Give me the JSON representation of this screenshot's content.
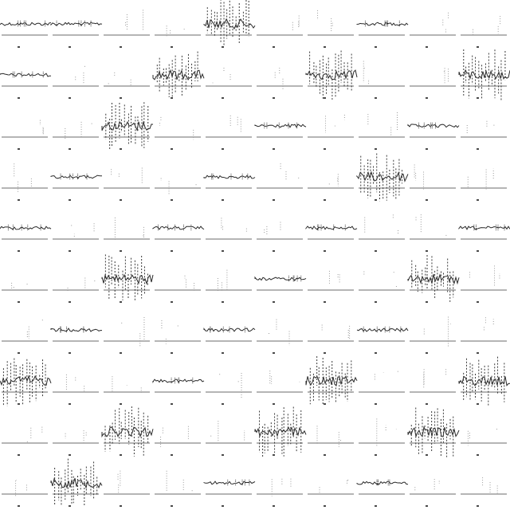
{
  "image": {
    "kind": "repeating seismogram-like texture",
    "columns": 10,
    "rows": 10,
    "background_color": "#ffffff",
    "ink_color": "#2a2a2a",
    "baseline_color": "#b5b5b5",
    "tiles": [
      {
        "row": 0,
        "col": 0,
        "variant": "quiet"
      },
      {
        "row": 0,
        "col": 1,
        "variant": "quiet"
      },
      {
        "row": 0,
        "col": 2,
        "variant": "empty"
      },
      {
        "row": 0,
        "col": 3,
        "variant": "empty"
      },
      {
        "row": 0,
        "col": 4,
        "variant": "burst"
      },
      {
        "row": 0,
        "col": 5,
        "variant": "empty"
      },
      {
        "row": 0,
        "col": 6,
        "variant": "empty"
      },
      {
        "row": 0,
        "col": 7,
        "variant": "quiet"
      },
      {
        "row": 0,
        "col": 8,
        "variant": "empty"
      },
      {
        "row": 0,
        "col": 9,
        "variant": "empty"
      },
      {
        "row": 1,
        "col": 0,
        "variant": "quiet"
      },
      {
        "row": 1,
        "col": 1,
        "variant": "empty"
      },
      {
        "row": 1,
        "col": 2,
        "variant": "empty"
      },
      {
        "row": 1,
        "col": 3,
        "variant": "burst"
      },
      {
        "row": 1,
        "col": 4,
        "variant": "empty"
      },
      {
        "row": 1,
        "col": 5,
        "variant": "empty"
      },
      {
        "row": 1,
        "col": 6,
        "variant": "burst"
      },
      {
        "row": 1,
        "col": 7,
        "variant": "empty"
      },
      {
        "row": 1,
        "col": 8,
        "variant": "empty"
      },
      {
        "row": 1,
        "col": 9,
        "variant": "burst"
      },
      {
        "row": 2,
        "col": 0,
        "variant": "empty"
      },
      {
        "row": 2,
        "col": 1,
        "variant": "empty"
      },
      {
        "row": 2,
        "col": 2,
        "variant": "burst"
      },
      {
        "row": 2,
        "col": 3,
        "variant": "empty"
      },
      {
        "row": 2,
        "col": 4,
        "variant": "empty"
      },
      {
        "row": 2,
        "col": 5,
        "variant": "quiet"
      },
      {
        "row": 2,
        "col": 6,
        "variant": "empty"
      },
      {
        "row": 2,
        "col": 7,
        "variant": "empty"
      },
      {
        "row": 2,
        "col": 8,
        "variant": "quiet"
      },
      {
        "row": 2,
        "col": 9,
        "variant": "empty"
      },
      {
        "row": 3,
        "col": 0,
        "variant": "empty"
      },
      {
        "row": 3,
        "col": 1,
        "variant": "quiet"
      },
      {
        "row": 3,
        "col": 2,
        "variant": "empty"
      },
      {
        "row": 3,
        "col": 3,
        "variant": "empty"
      },
      {
        "row": 3,
        "col": 4,
        "variant": "quiet"
      },
      {
        "row": 3,
        "col": 5,
        "variant": "empty"
      },
      {
        "row": 3,
        "col": 6,
        "variant": "empty"
      },
      {
        "row": 3,
        "col": 7,
        "variant": "burst"
      },
      {
        "row": 3,
        "col": 8,
        "variant": "empty"
      },
      {
        "row": 3,
        "col": 9,
        "variant": "empty"
      },
      {
        "row": 4,
        "col": 0,
        "variant": "quiet"
      },
      {
        "row": 4,
        "col": 1,
        "variant": "empty"
      },
      {
        "row": 4,
        "col": 2,
        "variant": "empty"
      },
      {
        "row": 4,
        "col": 3,
        "variant": "quiet"
      },
      {
        "row": 4,
        "col": 4,
        "variant": "empty"
      },
      {
        "row": 4,
        "col": 5,
        "variant": "empty"
      },
      {
        "row": 4,
        "col": 6,
        "variant": "quiet"
      },
      {
        "row": 4,
        "col": 7,
        "variant": "empty"
      },
      {
        "row": 4,
        "col": 8,
        "variant": "empty"
      },
      {
        "row": 4,
        "col": 9,
        "variant": "quiet"
      },
      {
        "row": 5,
        "col": 0,
        "variant": "empty"
      },
      {
        "row": 5,
        "col": 1,
        "variant": "empty"
      },
      {
        "row": 5,
        "col": 2,
        "variant": "burst"
      },
      {
        "row": 5,
        "col": 3,
        "variant": "empty"
      },
      {
        "row": 5,
        "col": 4,
        "variant": "empty"
      },
      {
        "row": 5,
        "col": 5,
        "variant": "quiet"
      },
      {
        "row": 5,
        "col": 6,
        "variant": "empty"
      },
      {
        "row": 5,
        "col": 7,
        "variant": "empty"
      },
      {
        "row": 5,
        "col": 8,
        "variant": "burst"
      },
      {
        "row": 5,
        "col": 9,
        "variant": "empty"
      },
      {
        "row": 6,
        "col": 0,
        "variant": "empty"
      },
      {
        "row": 6,
        "col": 1,
        "variant": "quiet"
      },
      {
        "row": 6,
        "col": 2,
        "variant": "empty"
      },
      {
        "row": 6,
        "col": 3,
        "variant": "empty"
      },
      {
        "row": 6,
        "col": 4,
        "variant": "quiet"
      },
      {
        "row": 6,
        "col": 5,
        "variant": "empty"
      },
      {
        "row": 6,
        "col": 6,
        "variant": "empty"
      },
      {
        "row": 6,
        "col": 7,
        "variant": "quiet"
      },
      {
        "row": 6,
        "col": 8,
        "variant": "empty"
      },
      {
        "row": 6,
        "col": 9,
        "variant": "empty"
      },
      {
        "row": 7,
        "col": 0,
        "variant": "burst"
      },
      {
        "row": 7,
        "col": 1,
        "variant": "empty"
      },
      {
        "row": 7,
        "col": 2,
        "variant": "empty"
      },
      {
        "row": 7,
        "col": 3,
        "variant": "quiet"
      },
      {
        "row": 7,
        "col": 4,
        "variant": "empty"
      },
      {
        "row": 7,
        "col": 5,
        "variant": "empty"
      },
      {
        "row": 7,
        "col": 6,
        "variant": "burst"
      },
      {
        "row": 7,
        "col": 7,
        "variant": "empty"
      },
      {
        "row": 7,
        "col": 8,
        "variant": "empty"
      },
      {
        "row": 7,
        "col": 9,
        "variant": "burst"
      },
      {
        "row": 8,
        "col": 0,
        "variant": "empty"
      },
      {
        "row": 8,
        "col": 1,
        "variant": "empty"
      },
      {
        "row": 8,
        "col": 2,
        "variant": "burst"
      },
      {
        "row": 8,
        "col": 3,
        "variant": "empty"
      },
      {
        "row": 8,
        "col": 4,
        "variant": "empty"
      },
      {
        "row": 8,
        "col": 5,
        "variant": "burst"
      },
      {
        "row": 8,
        "col": 6,
        "variant": "empty"
      },
      {
        "row": 8,
        "col": 7,
        "variant": "empty"
      },
      {
        "row": 8,
        "col": 8,
        "variant": "burst"
      },
      {
        "row": 8,
        "col": 9,
        "variant": "empty"
      },
      {
        "row": 9,
        "col": 0,
        "variant": "empty"
      },
      {
        "row": 9,
        "col": 1,
        "variant": "burst"
      },
      {
        "row": 9,
        "col": 2,
        "variant": "empty"
      },
      {
        "row": 9,
        "col": 3,
        "variant": "empty"
      },
      {
        "row": 9,
        "col": 4,
        "variant": "quiet"
      },
      {
        "row": 9,
        "col": 5,
        "variant": "empty"
      },
      {
        "row": 9,
        "col": 6,
        "variant": "empty"
      },
      {
        "row": 9,
        "col": 7,
        "variant": "quiet"
      },
      {
        "row": 9,
        "col": 8,
        "variant": "empty"
      },
      {
        "row": 9,
        "col": 9,
        "variant": "empty"
      }
    ]
  }
}
